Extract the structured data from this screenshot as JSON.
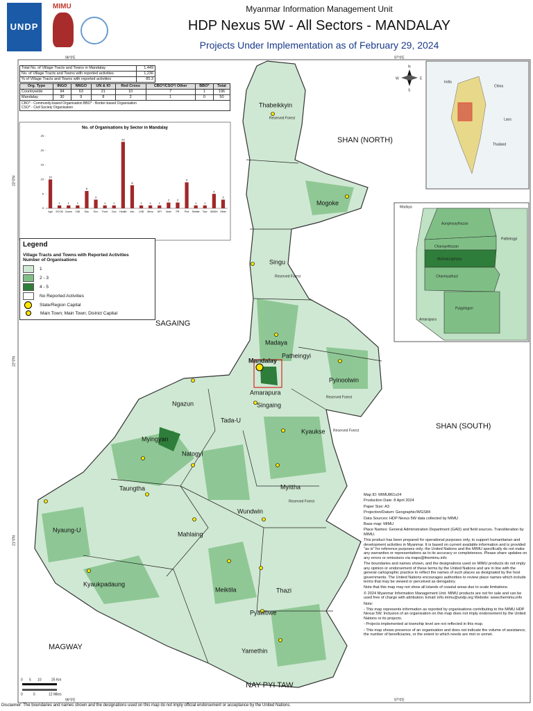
{
  "header": {
    "org": "Myanmar Information Management Unit",
    "title": "HDP Nexus 5W - All Sectors - MANDALAY",
    "subtitle": "Projects Under Implementation as of February 29, 2024",
    "logo_left": "UNDP",
    "logo_mimu": "MIMU"
  },
  "summary": {
    "rows": [
      [
        "Total No. of Village Tracts and Towns in Mandalay",
        "1,449"
      ],
      [
        "No. of Village Tracts and Towns with reported activities",
        "1,236"
      ],
      [
        "% of Village Tracts and Towns with reported activities",
        "85.3"
      ]
    ]
  },
  "org_table": {
    "headers": [
      "Org. Type",
      "INGO",
      "NNGO",
      "UN & IO",
      "Red Cross",
      "CBO*/CSO*/ Other",
      "BBO*",
      "Total"
    ],
    "rows": [
      [
        "Countrywide",
        "94",
        "63",
        "21",
        "10",
        "7",
        "1",
        "196"
      ],
      [
        "Mandalay",
        "30",
        "9",
        "8",
        "2",
        "1",
        "0",
        "50"
      ]
    ],
    "notes": [
      "CBO* - Community-based Organisation     BBO* - Border-based Organisation",
      "CSO* - Civil Society Organisation"
    ]
  },
  "chart_data": {
    "type": "bar",
    "title": "No. of Organisations by Sector in Mandalay",
    "categories": [
      "Agri",
      "ECCM",
      "Comm",
      "CWI",
      "Edu",
      "Env",
      "Food",
      "Gov",
      "Health",
      "Info",
      "LHB",
      "Micro",
      "NFI",
      "Nutri",
      "PR",
      "Prot",
      "Shelter",
      "Tour",
      "WASH",
      "Other"
    ],
    "values": [
      10,
      1,
      1,
      1,
      6,
      3,
      1,
      1,
      23,
      8,
      1,
      1,
      1,
      2,
      2,
      9,
      1,
      1,
      5,
      3
    ],
    "color": "#a0282a",
    "ylim": [
      0,
      25
    ],
    "yticks": [
      0,
      5,
      10,
      15,
      20,
      25
    ]
  },
  "legend": {
    "title": "Legend",
    "subtitle": "Village Tracts and Towns with Reported Activities",
    "heading": "Number of Organisations",
    "items": [
      "1",
      "2 - 3",
      "4 - 5",
      "No Reported Activities",
      "State/Region Capital",
      "Main Town; Main Town; District Capital"
    ]
  },
  "map": {
    "labels": [
      "Thabeikkyin",
      "Reserved Forest",
      "SHAN (NORTH)",
      "Mogoke",
      "Singu",
      "Reserved Forest",
      "SAGAING",
      "Madaya",
      "Patheingyi",
      "Mandalay",
      "Pyinoolwin",
      "Reserved Forest",
      "Amarapura",
      "Singaing",
      "Ngazun",
      "Tada-U",
      "Kyaukse",
      "Reserved Forest",
      "SHAN (SOUTH)",
      "Myingyan",
      "Natogyi",
      "Myittha",
      "Reserved Forest",
      "Taungtha",
      "Wundwin",
      "Nyaung-U",
      "Mahlaing",
      "Kyaukpadaung",
      "Meiktila",
      "Thazi",
      "Pyawbwe",
      "MAGWAY",
      "Yamethin",
      "NAY PYI TAW"
    ],
    "coords": [
      "96°0'E",
      "97°0'E",
      "23°0'N",
      "22°0'N",
      "21°0'N",
      "96°0'E",
      "97°0'E"
    ],
    "compass": [
      "N",
      "S",
      "E",
      "W"
    ],
    "locator": [
      "India",
      "China",
      "Laos",
      "Thailand"
    ],
    "inset": [
      "Madaya",
      "Aungmyaythazan",
      "Patheingyi",
      "Chanayethazan",
      "Mahaaungmyay",
      "Chanmyathazi",
      "Pyigyitagon",
      "Amarapura"
    ],
    "scale": [
      "0",
      "5",
      "10",
      "25 Km",
      "0",
      "5",
      "12 Miles"
    ]
  },
  "notes": [
    "Map ID: MIMU861v24",
    "Production Date: 8 April 2024",
    "Paper Size: A3",
    "Projection/Datum: Geographic/WGS84",
    "Data Sources: HDP Nexus 5W data collected by MIMU",
    "Base map: MIMU",
    "Place Names: General Administration Department (GAD) and field sources. Transliteration by MIMU.",
    "This product has been prepared for operational purposes only, to support humanitarian and development activities in Myanmar. It is based on current available information and is provided \"as is\" for reference purposes only; the United Nations and the MIMU specifically do not make any warranties or representations as to its accuracy or completeness. Please share updates on any errors or omissions via maps@themimu.info",
    "The boundaries and names shown, and the designations used on MIMU products do not imply any opinion or endorsement of these terms by the United Nations and are in line with the general cartographic practice to reflect the names of such places as designated by the host governments. The United Nations encourages authorities to review place names which include terms that may be viewed or perceived as derogatory.",
    "Note that this map may not show all islands of coastal areas due to scale limitations.",
    "© 2024 Myanmar Information Management Unit. MIMU products are not for sale and can be used free of charge with attribution. Email: info.mimu@undp.org  Website: www.themimu.info",
    "Note:",
    "- This map represents information as reported by organisations contributing to the MIMU HDP Nexus 5W. Inclusion of an organisation on this map does not imply endorsement by the United Nations or its projects.",
    "- Projects implemented at township level are not reflected in this map.",
    "- This map shows presence of an organisation and does not indicate the volume of assistance, the number of beneficiaries, or the extent to which needs are met or unmet."
  ],
  "disclaimer": "Disclaimer: The boundaries and names shown and the designations used on this map do not imply official endorsement or acceptance by the United Nations."
}
